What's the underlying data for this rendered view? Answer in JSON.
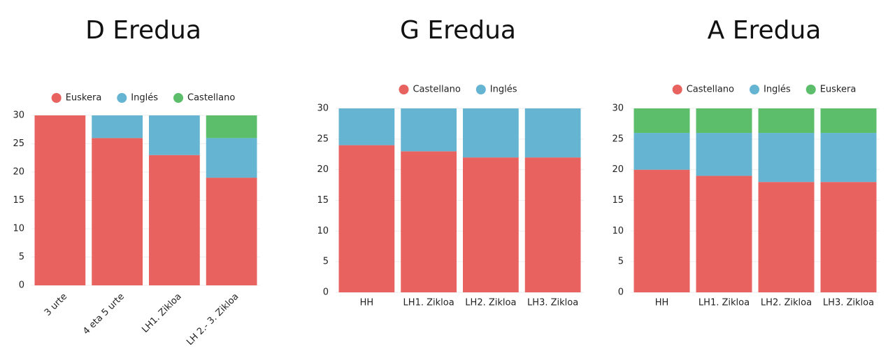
{
  "chart_data": [
    {
      "type": "bar",
      "stacked": true,
      "title": "D Eredua",
      "categories": [
        "3 urte",
        "4 eta 5 urte",
        "LH1. Zikloa",
        "LH 2.- 3. Zikloa"
      ],
      "series": [
        {
          "name": "Euskera",
          "color": "#e8625f",
          "values": [
            30,
            26,
            23,
            19
          ]
        },
        {
          "name": "Inglés",
          "color": "#65b5d2",
          "values": [
            0,
            4,
            7,
            7
          ]
        },
        {
          "name": "Castellano",
          "color": "#5cbe6a",
          "values": [
            0,
            0,
            0,
            4
          ]
        }
      ],
      "ylim": [
        0,
        30
      ],
      "yticks": [
        0,
        5,
        10,
        15,
        20,
        25,
        30
      ],
      "grid": true
    },
    {
      "type": "bar",
      "stacked": true,
      "title": "G Eredua",
      "categories": [
        "HH",
        "LH1. Zikloa",
        "LH2. Zikloa",
        "LH3. Zikloa"
      ],
      "series": [
        {
          "name": "Castellano",
          "color": "#e8625f",
          "values": [
            24,
            23,
            22,
            22
          ]
        },
        {
          "name": "Inglés",
          "color": "#65b5d2",
          "values": [
            6,
            7,
            8,
            8
          ]
        }
      ],
      "ylim": [
        0,
        30
      ],
      "yticks": [
        0,
        5,
        10,
        15,
        20,
        25,
        30
      ],
      "grid": true
    },
    {
      "type": "bar",
      "stacked": true,
      "title": "A Eredua",
      "categories": [
        "HH",
        "LH1. Zikloa",
        "LH2. Zikloa",
        "LH3. Zikloa"
      ],
      "series": [
        {
          "name": "Castellano",
          "color": "#e8625f",
          "values": [
            20,
            19,
            18,
            18
          ]
        },
        {
          "name": "Inglés",
          "color": "#65b5d2",
          "values": [
            6,
            7,
            8,
            8
          ]
        },
        {
          "name": "Euskera",
          "color": "#5cbe6a",
          "values": [
            4,
            4,
            4,
            4
          ]
        }
      ],
      "ylim": [
        0,
        30
      ],
      "yticks": [
        0,
        5,
        10,
        15,
        20,
        25,
        30
      ],
      "grid": true
    }
  ]
}
